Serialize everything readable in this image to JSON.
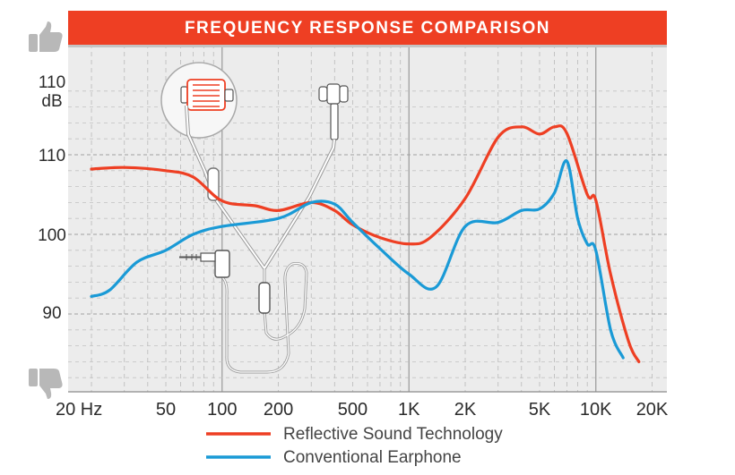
{
  "chart_data": {
    "type": "line",
    "title": "FREQUENCY RESPONSE COMPARISON",
    "x_tick_labels": [
      "20 Hz",
      "50",
      "100",
      "200",
      "500",
      "1K",
      "2K",
      "5K",
      "10K",
      "20K"
    ],
    "y_tick_labels": [
      "110 dB",
      "110",
      "100",
      "90"
    ],
    "colors": {
      "title_bar": "#ee3f23",
      "reflective": "#ee3f23",
      "conventional": "#1a9ad6",
      "grid": "#b9b9b9",
      "panel": "#ececec"
    },
    "icons": {
      "top": "thumbs-up-icon",
      "bottom": "thumbs-down-icon",
      "illustration": "earphones-illustration"
    },
    "legend_position": "bottom-center",
    "series": [
      {
        "name": "Reflective Sound Technology",
        "color": "#ee3f23",
        "points": [
          [
            "20 Hz",
            108.2
          ],
          [
            "30",
            108.4
          ],
          [
            "50",
            108.0
          ],
          [
            "70",
            107.2
          ],
          [
            "100",
            104.2
          ],
          [
            "150",
            103.6
          ],
          [
            "200",
            103.0
          ],
          [
            "300",
            104.0
          ],
          [
            "400",
            103.0
          ],
          [
            "500",
            101.2
          ],
          [
            "700",
            99.6
          ],
          [
            "1K",
            98.8
          ],
          [
            "1.3K",
            99.6
          ],
          [
            "2K",
            104.5
          ],
          [
            "3K",
            112.2
          ],
          [
            "4K",
            113.5
          ],
          [
            "5K",
            112.6
          ],
          [
            "6K",
            113.5
          ],
          [
            "7K",
            112.7
          ],
          [
            "9K",
            105.0
          ],
          [
            "10K",
            104.3
          ],
          [
            "12K",
            95.0
          ],
          [
            "15K",
            86.5
          ],
          [
            "17K",
            84.0
          ]
        ]
      },
      {
        "name": "Conventional Earphone",
        "color": "#1a9ad6",
        "points": [
          [
            "20 Hz",
            92.2
          ],
          [
            "25",
            93.0
          ],
          [
            "35",
            96.5
          ],
          [
            "50",
            98.0
          ],
          [
            "70",
            100.0
          ],
          [
            "100",
            101.0
          ],
          [
            "200",
            102.0
          ],
          [
            "300",
            104.0
          ],
          [
            "400",
            103.8
          ],
          [
            "500",
            101.5
          ],
          [
            "700",
            98.2
          ],
          [
            "1K",
            95.0
          ],
          [
            "1.4K",
            93.4
          ],
          [
            "2K",
            101.0
          ],
          [
            "3K",
            101.5
          ],
          [
            "4K",
            103.0
          ],
          [
            "5K",
            103.2
          ],
          [
            "6K",
            105.2
          ],
          [
            "7K",
            109.2
          ],
          [
            "8K",
            102.0
          ],
          [
            "9K",
            98.8
          ],
          [
            "10K",
            98.0
          ],
          [
            "12K",
            88.0
          ],
          [
            "14K",
            84.5
          ]
        ]
      }
    ]
  }
}
